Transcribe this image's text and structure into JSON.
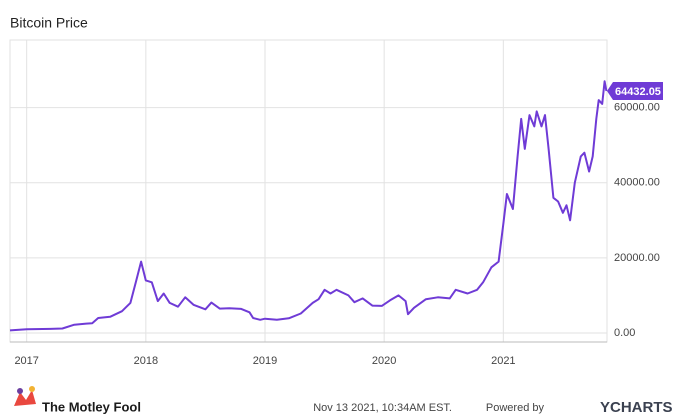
{
  "chart_data": {
    "type": "line",
    "title": "Bitcoin Price",
    "color": "#6f3bd6",
    "grid": true,
    "x": [
      2016.86,
      2017.0,
      2017.2,
      2017.3,
      2017.4,
      2017.5,
      2017.55,
      2017.6,
      2017.7,
      2017.8,
      2017.87,
      2017.92,
      2017.96,
      2018.0,
      2018.05,
      2018.1,
      2018.15,
      2018.2,
      2018.27,
      2018.33,
      2018.4,
      2018.5,
      2018.55,
      2018.62,
      2018.7,
      2018.8,
      2018.87,
      2018.9,
      2018.96,
      2019.0,
      2019.1,
      2019.2,
      2019.3,
      2019.4,
      2019.45,
      2019.5,
      2019.55,
      2019.6,
      2019.7,
      2019.75,
      2019.82,
      2019.9,
      2019.98,
      2020.05,
      2020.12,
      2020.18,
      2020.2,
      2020.25,
      2020.35,
      2020.45,
      2020.55,
      2020.6,
      2020.7,
      2020.78,
      2020.83,
      2020.9,
      2020.96,
      2021.0,
      2021.03,
      2021.08,
      2021.12,
      2021.15,
      2021.18,
      2021.22,
      2021.26,
      2021.28,
      2021.32,
      2021.35,
      2021.38,
      2021.42,
      2021.46,
      2021.5,
      2021.53,
      2021.56,
      2021.6,
      2021.65,
      2021.68,
      2021.72,
      2021.75,
      2021.78,
      2021.8,
      2021.83,
      2021.85,
      2021.865
    ],
    "values": [
      700,
      1000,
      1100,
      1200,
      2200,
      2500,
      2600,
      4000,
      4300,
      5800,
      8000,
      14000,
      19000,
      14000,
      13500,
      8500,
      10500,
      8000,
      7000,
      9500,
      7500,
      6300,
      8100,
      6500,
      6600,
      6400,
      5500,
      4000,
      3500,
      3800,
      3500,
      3900,
      5200,
      8000,
      9000,
      11500,
      10500,
      11500,
      10000,
      8200,
      9200,
      7300,
      7200,
      8700,
      10000,
      8500,
      5000,
      6700,
      9000,
      9500,
      9200,
      11500,
      10500,
      11500,
      13500,
      17500,
      19000,
      29000,
      37000,
      33000,
      47000,
      57000,
      49000,
      58000,
      55000,
      59000,
      55000,
      58000,
      49000,
      36000,
      35000,
      32000,
      34000,
      30000,
      40000,
      47000,
      48000,
      43000,
      47000,
      57000,
      62000,
      61000,
      67000,
      64432.05
    ],
    "xlim": [
      2016.86,
      2021.87
    ],
    "xticks": [
      2017,
      2018,
      2019,
      2020,
      2021
    ],
    "ylim": [
      -2400,
      78000
    ],
    "yticks": [
      {
        "value": 0,
        "label": "0.00"
      },
      {
        "value": 20000,
        "label": "20000.00"
      },
      {
        "value": 40000,
        "label": "40000.00"
      },
      {
        "value": 60000,
        "label": "60000.00"
      }
    ],
    "brand": "The Motley Fool",
    "timestamp": "Nov 13 2021, 10:34AM EST.",
    "powered_by": "Powered by",
    "provider": "YCHARTS"
  }
}
